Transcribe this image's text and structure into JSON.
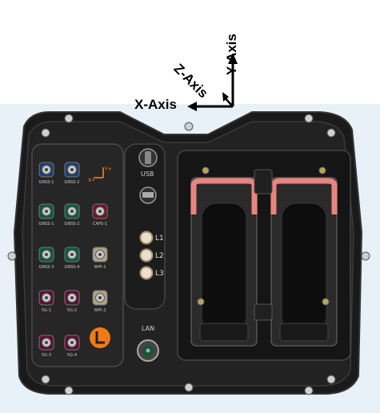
{
  "axes": {
    "x_label": "X-Axis",
    "y_label": "Y-Axis",
    "z_label": "Z-Axis",
    "mini_x": "X+",
    "mini_y": "Y+"
  },
  "ports": [
    {
      "label": "GNSS-1",
      "color": "#1d3f72"
    },
    {
      "label": "GNSS-2",
      "color": "#1d3f72"
    },
    {
      "label": "GNSS-1",
      "color": "#0e5a3f"
    },
    {
      "label": "GNSS-2",
      "color": "#0e5a3f"
    },
    {
      "label": "CAPS-1",
      "color": "#6e1428"
    },
    {
      "label": "GNSS-3",
      "color": "#0e5a3f"
    },
    {
      "label": "GNSS-4",
      "color": "#0e5a3f"
    },
    {
      "label": "WiFi-1",
      "color": "#b2a183"
    },
    {
      "label": "5G-1",
      "color": "#5a1230"
    },
    {
      "label": "5G-2",
      "color": "#5a1230"
    },
    {
      "label": "WiFi-2",
      "color": "#b2a183"
    },
    {
      "label": "5G-3",
      "color": "#5a1230"
    },
    {
      "label": "5G-4",
      "color": "#5a1230"
    }
  ],
  "usb_label": "USB",
  "lan_label": "LAN",
  "indicators": [
    "L1",
    "L2",
    "L3"
  ],
  "colors": {
    "axis_arrow": "#000000",
    "mini_axis": "#ff8a1a",
    "logo": "#f07a16",
    "retainer": "#e8837e",
    "background": "#e7f1f7"
  }
}
